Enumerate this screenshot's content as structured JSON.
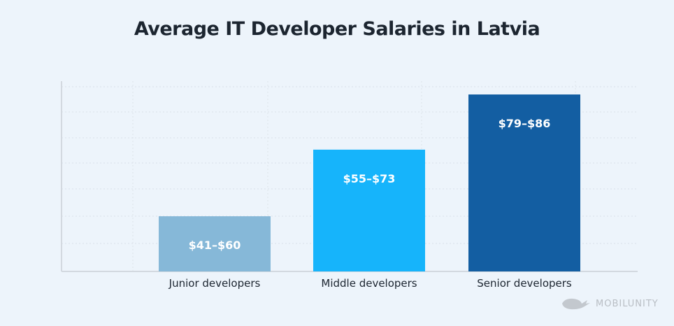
{
  "chart_data": {
    "type": "bar",
    "title": "Average IT Developer Salaries in Latvia",
    "categories": [
      "Junior developers",
      "Middle developers",
      "Senior developers"
    ],
    "data_labels": [
      "$41–$60",
      "$55–$73",
      "$79–$86"
    ],
    "bar_levels_percent_of_axis": [
      29,
      64,
      93
    ],
    "colors": [
      "#86b8d8",
      "#16b4fb",
      "#135ea2"
    ],
    "grid": true,
    "legend": "none"
  },
  "watermark": "MOBILUNITY"
}
